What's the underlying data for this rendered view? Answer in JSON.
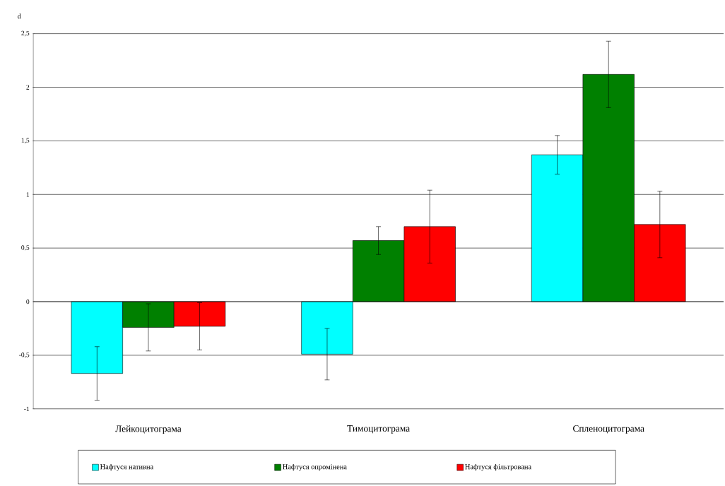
{
  "chart_data": {
    "type": "bar",
    "ylabel": "d",
    "categories": [
      "Лейкоцитограма",
      "Тимоцитограма",
      "Спленоцитограма"
    ],
    "series": [
      {
        "name": "Нафтуся нативна",
        "color": "#00ffff",
        "values": [
          -0.67,
          -0.49,
          1.37
        ],
        "errors": [
          0.25,
          0.24,
          0.18
        ]
      },
      {
        "name": "Нафтуся опромінена",
        "color": "#008000",
        "values": [
          -0.24,
          0.57,
          2.12
        ],
        "errors": [
          0.22,
          0.13,
          0.31
        ]
      },
      {
        "name": "Нафтуся фільтрована",
        "color": "#ff0000",
        "values": [
          -0.23,
          0.7,
          0.72
        ],
        "errors": [
          0.22,
          0.34,
          0.31
        ]
      }
    ],
    "ylim": [
      -1,
      2.5
    ],
    "yticks": [
      {
        "value": -1,
        "label": "-1"
      },
      {
        "value": -0.5,
        "label": "-0,5"
      },
      {
        "value": 0,
        "label": "0"
      },
      {
        "value": 0.5,
        "label": "0,5"
      },
      {
        "value": 1,
        "label": "1"
      },
      {
        "value": 1.5,
        "label": "1,5"
      },
      {
        "value": 2,
        "label": "2"
      },
      {
        "value": 2.5,
        "label": "2,5"
      }
    ],
    "grid": "y",
    "legend": "bottom"
  }
}
